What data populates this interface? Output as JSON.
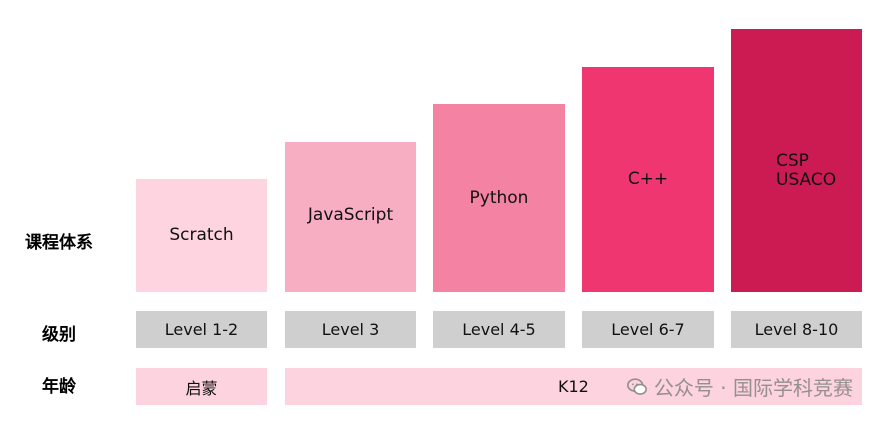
{
  "row_labels": {
    "curriculum": "课程体系",
    "level": "级别",
    "age": "年龄"
  },
  "courses": [
    {
      "name": "Scratch",
      "level": "Level  1-2",
      "color": "#fdd4df"
    },
    {
      "name": "JavaScript",
      "level": "Level  3",
      "color": "#f7aec3"
    },
    {
      "name": "Python",
      "level": "Level  4-5",
      "color": "#f482a2"
    },
    {
      "name": "C++",
      "level": "Level  6-7",
      "color": "#ef3670"
    },
    {
      "name": "CSP\nUSACO",
      "level": "Level  8-10",
      "color": "#cc1b52"
    }
  ],
  "age": {
    "first": "启蒙",
    "rest": "K12"
  },
  "watermark": {
    "text": "公众号 · 国际学科竞赛",
    "icon": "wechat-icon"
  }
}
